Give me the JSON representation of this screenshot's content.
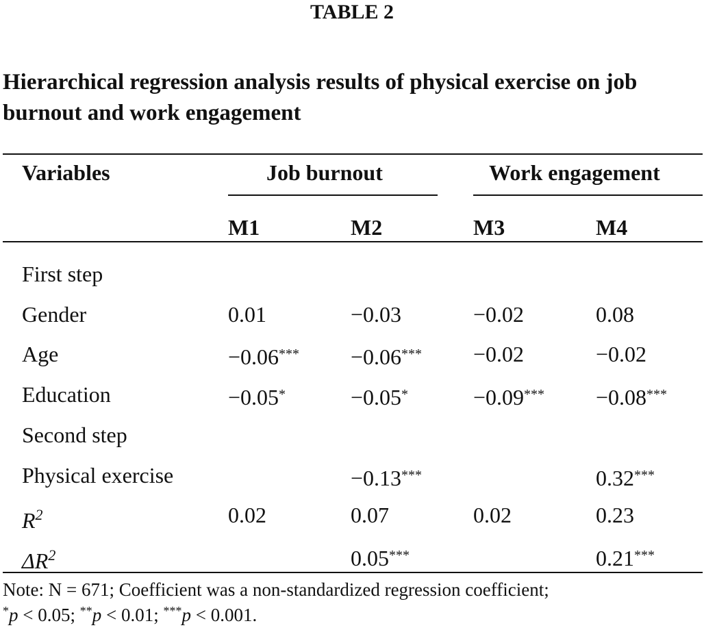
{
  "table_label": "TABLE 2",
  "title": {
    "line1": "Hierarchical regression analysis results of physical exercise on job",
    "line2": "burnout and work engagement"
  },
  "header": {
    "variables": "Variables",
    "group1": "Job burnout",
    "group2": "Work engagement",
    "models": [
      "M1",
      "M2",
      "M3",
      "M4"
    ]
  },
  "rows": [
    {
      "label": "First step",
      "values": [
        "",
        "",
        "",
        ""
      ]
    },
    {
      "label": "Gender",
      "values": [
        "0.01",
        "−0.03",
        "−0.02",
        "0.08"
      ]
    },
    {
      "label": "Age",
      "values": [
        "−0.06***",
        "−0.06***",
        "−0.02",
        "−0.02"
      ]
    },
    {
      "label": "Education",
      "values": [
        "−0.05*",
        "−0.05*",
        "−0.09***",
        "−0.08***"
      ]
    },
    {
      "label": "Second step",
      "values": [
        "",
        "",
        "",
        ""
      ]
    },
    {
      "label": "Physical exercise",
      "values": [
        "",
        "−0.13***",
        "",
        "0.32***"
      ]
    },
    {
      "label": "R2",
      "values": [
        "0.02",
        "0.07",
        "0.02",
        "0.23"
      ]
    },
    {
      "label": "ΔR2",
      "values": [
        "",
        "0.05***",
        "",
        "0.21***"
      ]
    }
  ],
  "note": {
    "line1": "Note: N = 671; Coefficient was a non-standardized regression coefficient;",
    "line2": "*p < 0.05; **p < 0.01; ***p < 0.001."
  }
}
